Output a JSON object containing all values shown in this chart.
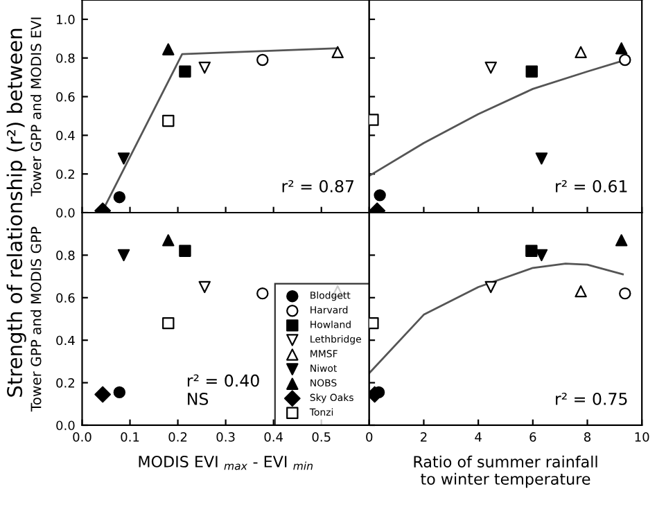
{
  "chart_data": [
    {
      "type": "scatter",
      "ylabel": "Tower GPP and MODIS EVI",
      "xlim": [
        0,
        0.6
      ],
      "ylim": [
        0,
        1.1
      ],
      "xticks": [
        {
          "value": 0,
          "label": null
        },
        {
          "value": 0.1,
          "label": null
        },
        {
          "value": 0.2,
          "label": null
        },
        {
          "value": 0.3,
          "label": null
        },
        {
          "value": 0.4,
          "label": null
        },
        {
          "value": 0.5,
          "label": null
        }
      ],
      "yticks": [
        {
          "value": 0,
          "label": "0.0"
        },
        {
          "value": 0.2,
          "label": "0.2"
        },
        {
          "value": 0.4,
          "label": "0.4"
        },
        {
          "value": 0.6,
          "label": "0.6"
        },
        {
          "value": 0.8,
          "label": "0.8"
        },
        {
          "value": 1.0,
          "label": "1.0"
        }
      ],
      "tick_labels": "y",
      "grid": false,
      "legend": false,
      "annotations": [
        "r² = 0.87",
        "Strength of relationship (r²) between"
      ],
      "series": [
        {
          "color": "#000000",
          "marker": "circle",
          "x": [
            0.078
          ],
          "values": [
            0.08
          ]
        },
        {
          "color": "#ffffff",
          "marker": "circle",
          "x": [
            0.377
          ],
          "values": [
            0.79
          ]
        },
        {
          "color": "#000000",
          "marker": "square",
          "x": [
            0.215
          ],
          "values": [
            0.73
          ]
        },
        {
          "color": "#ffffff",
          "marker": "triangle_down",
          "x": [
            0.256
          ],
          "values": [
            0.75
          ]
        },
        {
          "color": "#ffffff",
          "marker": "triangle",
          "x": [
            0.534
          ],
          "values": [
            0.83
          ]
        },
        {
          "color": "#000000",
          "marker": "triangle_down",
          "x": [
            0.087
          ],
          "values": [
            0.28
          ]
        },
        {
          "color": "#000000",
          "marker": "triangle",
          "x": [
            0.18
          ],
          "values": [
            0.845
          ]
        },
        {
          "color": "#000000",
          "marker": "diamond",
          "x": [
            0.043
          ],
          "values": [
            0.01
          ]
        },
        {
          "color": "#ffffff",
          "marker": "square",
          "x": [
            0.18
          ],
          "values": [
            0.475
          ]
        },
        {
          "type": "line",
          "color": "#555555",
          "marker": "none",
          "x": [
            0.043,
            0.209,
            0.534
          ],
          "values": [
            0.01,
            0.82,
            0.85
          ]
        }
      ]
    },
    {
      "type": "scatter",
      "xlim": [
        0,
        10
      ],
      "ylim": [
        0,
        1.1
      ],
      "xticks": [
        0,
        2,
        4,
        6,
        8,
        10
      ],
      "yticks": [
        {
          "value": 0,
          "label": null
        },
        {
          "value": 0.2,
          "label": null
        },
        {
          "value": 0.4,
          "label": null
        },
        {
          "value": 0.6,
          "label": null
        },
        {
          "value": 0.8,
          "label": null
        },
        {
          "value": 1.0,
          "label": null
        }
      ],
      "tick_labels": false,
      "grid": false,
      "legend": false,
      "annotations": [
        "r² = 0.61"
      ],
      "series": [
        {
          "color": "#000000",
          "marker": "circle",
          "x": [
            0.39
          ],
          "values": [
            0.09
          ]
        },
        {
          "color": "#ffffff",
          "marker": "circle",
          "x": [
            9.38
          ],
          "values": [
            0.79
          ]
        },
        {
          "color": "#000000",
          "marker": "square",
          "x": [
            5.96
          ],
          "values": [
            0.73
          ]
        },
        {
          "color": "#ffffff",
          "marker": "triangle_down",
          "x": [
            4.46
          ],
          "values": [
            0.75
          ]
        },
        {
          "color": "#ffffff",
          "marker": "triangle",
          "x": [
            7.76
          ],
          "values": [
            0.83
          ]
        },
        {
          "color": "#000000",
          "marker": "triangle_down",
          "x": [
            6.32
          ],
          "values": [
            0.28
          ]
        },
        {
          "color": "#000000",
          "marker": "triangle",
          "x": [
            9.25
          ],
          "values": [
            0.85
          ]
        },
        {
          "color": "#000000",
          "marker": "diamond",
          "x": [
            0.29
          ],
          "values": [
            0.01
          ]
        },
        {
          "color": "#ffffff",
          "marker": "square",
          "x": [
            0.13
          ],
          "values": [
            0.48
          ]
        },
        {
          "type": "line",
          "color": "#555555",
          "marker": "none",
          "x": [
            0,
            2,
            4,
            6,
            8,
            9.4
          ],
          "values": [
            0.19,
            0.36,
            0.51,
            0.64,
            0.73,
            0.79
          ]
        }
      ]
    },
    {
      "type": "scatter",
      "xlabel": "MODIS EVI $_{max}$ - EVI $_{min}$",
      "ylabel": "Tower GPP and MODIS GPP",
      "xlim": [
        0,
        0.6
      ],
      "ylim": [
        0,
        1.0
      ],
      "xticks": [
        {
          "value": 0,
          "label": "0.0"
        },
        {
          "value": 0.1,
          "label": "0.1"
        },
        {
          "value": 0.2,
          "label": "0.2"
        },
        {
          "value": 0.3,
          "label": "0.3"
        },
        {
          "value": 0.4,
          "label": "0.4"
        },
        {
          "value": 0.5,
          "label": "0.5"
        }
      ],
      "yticks": [
        {
          "value": 0,
          "label": "0.0"
        },
        {
          "value": 0.2,
          "label": "0.2"
        },
        {
          "value": 0.4,
          "label": "0.4"
        },
        {
          "value": 0.6,
          "label": "0.6"
        },
        {
          "value": 0.8,
          "label": "0.8"
        }
      ],
      "grid": false,
      "legend": "bottom right",
      "annotations": [
        "r² = 0.40\nNS"
      ],
      "series": [
        {
          "name": "Blodgett",
          "color": "#000000",
          "marker": "circle",
          "x": [
            0.078
          ],
          "values": [
            0.155
          ]
        },
        {
          "name": "Harvard",
          "color": "#ffffff",
          "marker": "circle",
          "x": [
            0.377
          ],
          "values": [
            0.62
          ]
        },
        {
          "name": "Howland",
          "color": "#000000",
          "marker": "square",
          "x": [
            0.215
          ],
          "values": [
            0.82
          ]
        },
        {
          "name": "Lethbridge",
          "color": "#ffffff",
          "marker": "triangle_down",
          "x": [
            0.256
          ],
          "values": [
            0.65
          ]
        },
        {
          "name": "MMSF",
          "color": "#ffffff",
          "marker": "triangle",
          "x": [
            0.534
          ],
          "values": [
            0.63
          ]
        },
        {
          "name": "Niwot",
          "color": "#000000",
          "marker": "triangle_down",
          "x": [
            0.087
          ],
          "values": [
            0.8
          ]
        },
        {
          "name": "NOBS",
          "color": "#000000",
          "marker": "triangle",
          "x": [
            0.18
          ],
          "values": [
            0.87
          ]
        },
        {
          "name": "Sky Oaks",
          "color": "#000000",
          "marker": "diamond",
          "x": [
            0.043
          ],
          "values": [
            0.145
          ]
        },
        {
          "name": "Tonzi",
          "color": "#ffffff",
          "marker": "square",
          "x": [
            0.18
          ],
          "values": [
            0.48
          ]
        }
      ]
    },
    {
      "type": "scatter",
      "xlabel": "Ratio of summer rainfall\nto winter temperature",
      "xlim": [
        0,
        10
      ],
      "ylim": [
        0,
        1.0
      ],
      "xticks": [
        0,
        2,
        4,
        6,
        8,
        10
      ],
      "yticks": [
        {
          "value": 0,
          "label": null
        },
        {
          "value": 0.2,
          "label": null
        },
        {
          "value": 0.4,
          "label": null
        },
        {
          "value": 0.6,
          "label": null
        },
        {
          "value": 0.8,
          "label": null
        }
      ],
      "tick_labels": "x",
      "grid": false,
      "legend": false,
      "annotations": [
        "r² = 0.75"
      ],
      "series": [
        {
          "color": "#000000",
          "marker": "circle",
          "x": [
            0.35
          ],
          "values": [
            0.155
          ]
        },
        {
          "color": "#ffffff",
          "marker": "circle",
          "x": [
            9.38
          ],
          "values": [
            0.62
          ]
        },
        {
          "color": "#000000",
          "marker": "square",
          "x": [
            5.95
          ],
          "values": [
            0.82
          ]
        },
        {
          "color": "#ffffff",
          "marker": "triangle_down",
          "x": [
            4.46
          ],
          "values": [
            0.65
          ]
        },
        {
          "color": "#ffffff",
          "marker": "triangle",
          "x": [
            7.76
          ],
          "values": [
            0.63
          ]
        },
        {
          "color": "#000000",
          "marker": "triangle_down",
          "x": [
            6.32
          ],
          "values": [
            0.8
          ]
        },
        {
          "color": "#000000",
          "marker": "triangle",
          "x": [
            9.25
          ],
          "values": [
            0.87
          ]
        },
        {
          "color": "#000000",
          "marker": "diamond",
          "x": [
            0.2
          ],
          "values": [
            0.145
          ]
        },
        {
          "color": "#ffffff",
          "marker": "square",
          "x": [
            0.13
          ],
          "values": [
            0.48
          ]
        },
        {
          "type": "line",
          "color": "#555555",
          "marker": "none",
          "x": [
            0,
            2,
            4,
            6,
            7.2,
            8,
            9.3
          ],
          "values": [
            0.245,
            0.52,
            0.65,
            0.74,
            0.76,
            0.755,
            0.71
          ]
        }
      ]
    }
  ]
}
